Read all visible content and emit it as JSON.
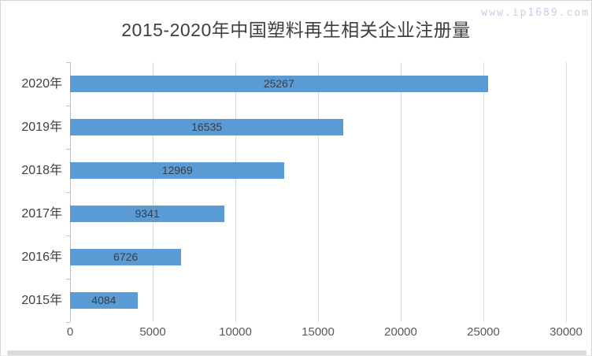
{
  "watermark": {
    "text": "www.ip1689.com"
  },
  "chart_data": {
    "type": "bar",
    "orientation": "horizontal",
    "title": "2015-2020年中国塑料再生相关企业注册量",
    "categories": [
      "2020年",
      "2019年",
      "2018年",
      "2017年",
      "2016年",
      "2015年"
    ],
    "values": [
      25267,
      16535,
      12969,
      9341,
      6726,
      4084
    ],
    "x_ticks": [
      0,
      5000,
      10000,
      15000,
      20000,
      25000,
      30000
    ],
    "xlim": [
      0,
      30000
    ],
    "xlabel": "",
    "ylabel": "",
    "legend": "none",
    "grid": "vertical-only",
    "data_label_position": "center-inside",
    "bar_color": "#5B9BD5",
    "gridline_color": "#D9D9D9",
    "axis_line_color": "#BFBFBF",
    "title_color": "#3F3F3F",
    "tick_label_color": "#595959",
    "data_label_color": "#3D3D3D",
    "watermark_color": "#C7CDE7"
  }
}
